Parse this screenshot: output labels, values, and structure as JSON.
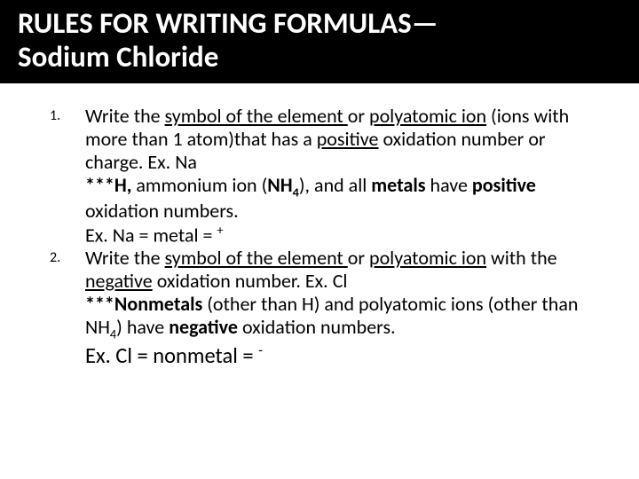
{
  "title_line1": "RULES FOR WRITING FORMULAS—",
  "title_line2": "Sodium Chloride",
  "items": [
    {
      "num": "1.",
      "p1a": "Write the ",
      "p1b": "symbol of the element ",
      "p1c": "or ",
      "p1d": "polyatomic ion",
      "p1e": " (ions with more than 1 atom)that has a ",
      "p1f": "positive",
      "p1g": " oxidation number or charge.    Ex. Na",
      "p2a": "***H,",
      "p2b": " ammonium ion (",
      "p2c": "NH",
      "p2d": "4",
      "p2e": "), and all ",
      "p2f": "metals",
      "p2g": " have ",
      "p2h": "positive",
      "p2i": " oxidation numbers.",
      "p3a": "Ex.  Na =  metal  =  ",
      "p3b": "+"
    },
    {
      "num": "2.",
      "p1a": "Write the ",
      "p1b": "symbol of the element ",
      "p1c": "or ",
      "p1d": "polyatomic ion",
      "p1e": " with the ",
      "p1f": "negative",
      "p1g": " oxidation number.  Ex. Cl",
      "p2a": "***Nonmetals",
      "p2b": " (other than H) and polyatomic ions (other than NH",
      "p2c": "4",
      "p2d": ") have ",
      "p2e": "negative",
      "p2f": " oxidation numbers.",
      "p3a": "Ex. Cl  =  nonmetal  = ",
      "p3b": "-"
    }
  ],
  "colors": {
    "title_bg": "#000000",
    "title_fg": "#ffffff",
    "body_bg": "#ffffff",
    "body_fg": "#000000"
  },
  "typography": {
    "title_fontsize": 33,
    "body_fontsize": 22,
    "list_num_fontsize": 16,
    "final_fontsize": 24.5,
    "font_family": "Calibri"
  }
}
